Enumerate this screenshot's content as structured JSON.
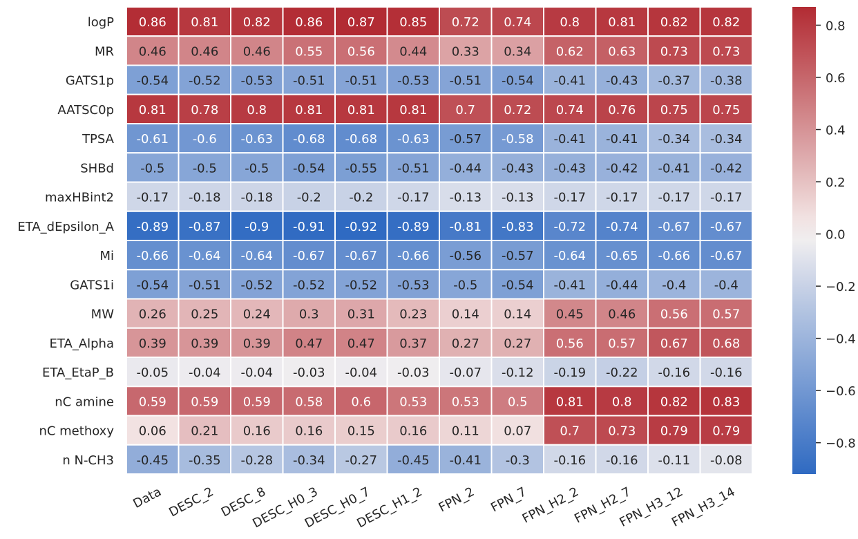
{
  "chart_data": {
    "type": "heatmap",
    "title": "",
    "xlabel": "",
    "ylabel": "",
    "rows": [
      "logP",
      "MR",
      "GATS1p",
      "AATSC0p",
      "TPSA",
      "SHBd",
      "maxHBint2",
      "ETA_dEpsilon_A",
      "Mi",
      "GATS1i",
      "MW",
      "ETA_Alpha",
      "ETA_EtaP_B",
      "nC amine",
      "nC methoxy",
      "n N-CH3"
    ],
    "columns": [
      "Data",
      "DESC_2",
      "DESC_8",
      "DESC_H0_3",
      "DESC_H0_7",
      "DESC_H1_2",
      "FPN_2",
      "FPN_7",
      "FPN_H2_2",
      "FPN_H2_7",
      "FPN_H3_12",
      "FPN_H3_14"
    ],
    "values": [
      [
        0.86,
        0.81,
        0.82,
        0.86,
        0.87,
        0.85,
        0.72,
        0.74,
        0.8,
        0.81,
        0.82,
        0.82
      ],
      [
        0.46,
        0.46,
        0.46,
        0.55,
        0.56,
        0.44,
        0.33,
        0.34,
        0.62,
        0.63,
        0.73,
        0.73
      ],
      [
        -0.54,
        -0.52,
        -0.53,
        -0.51,
        -0.51,
        -0.53,
        -0.51,
        -0.54,
        -0.41,
        -0.43,
        -0.37,
        -0.38
      ],
      [
        0.81,
        0.78,
        0.8,
        0.81,
        0.81,
        0.81,
        0.7,
        0.72,
        0.74,
        0.76,
        0.75,
        0.75
      ],
      [
        -0.61,
        -0.6,
        -0.63,
        -0.68,
        -0.68,
        -0.63,
        -0.57,
        -0.58,
        -0.41,
        -0.41,
        -0.34,
        -0.34
      ],
      [
        -0.5,
        -0.5,
        -0.5,
        -0.54,
        -0.55,
        -0.51,
        -0.44,
        -0.43,
        -0.43,
        -0.42,
        -0.41,
        -0.42
      ],
      [
        -0.17,
        -0.18,
        -0.18,
        -0.2,
        -0.2,
        -0.17,
        -0.13,
        -0.13,
        -0.17,
        -0.17,
        -0.17,
        -0.17
      ],
      [
        -0.89,
        -0.87,
        -0.9,
        -0.91,
        -0.92,
        -0.89,
        -0.81,
        -0.83,
        -0.72,
        -0.74,
        -0.67,
        -0.67
      ],
      [
        -0.66,
        -0.64,
        -0.64,
        -0.67,
        -0.67,
        -0.66,
        -0.56,
        -0.57,
        -0.64,
        -0.65,
        -0.66,
        -0.67
      ],
      [
        -0.54,
        -0.51,
        -0.52,
        -0.52,
        -0.52,
        -0.53,
        -0.5,
        -0.54,
        -0.41,
        -0.44,
        -0.4,
        -0.4
      ],
      [
        0.26,
        0.25,
        0.24,
        0.3,
        0.31,
        0.23,
        0.14,
        0.14,
        0.45,
        0.46,
        0.56,
        0.57
      ],
      [
        0.39,
        0.39,
        0.39,
        0.47,
        0.47,
        0.37,
        0.27,
        0.27,
        0.56,
        0.57,
        0.67,
        0.68
      ],
      [
        -0.05,
        -0.04,
        -0.04,
        -0.03,
        -0.04,
        -0.03,
        -0.07,
        -0.12,
        -0.19,
        -0.22,
        -0.16,
        -0.16
      ],
      [
        0.59,
        0.59,
        0.59,
        0.58,
        0.6,
        0.53,
        0.53,
        0.5,
        0.81,
        0.8,
        0.82,
        0.83
      ],
      [
        0.06,
        0.21,
        0.16,
        0.16,
        0.15,
        0.16,
        0.11,
        0.07,
        0.7,
        0.73,
        0.79,
        0.79
      ],
      [
        -0.45,
        -0.35,
        -0.28,
        -0.34,
        -0.27,
        -0.45,
        -0.41,
        -0.3,
        -0.16,
        -0.16,
        -0.11,
        -0.08
      ]
    ],
    "colorbar": {
      "range": [
        -0.92,
        0.87
      ],
      "ticks": [
        0.8,
        0.6,
        0.4,
        0.2,
        0.0,
        -0.2,
        -0.4,
        -0.6,
        -0.8
      ],
      "tick_labels": [
        "0.8",
        "0.6",
        "0.4",
        "0.2",
        "0.0",
        "−0.2",
        "−0.4",
        "−0.6",
        "−0.8"
      ],
      "colormap": "diverging blue-white-red",
      "colors": {
        "low": "#2f6ac2",
        "mid": "#f7f2f1",
        "high": "#b22b33"
      }
    },
    "grid": true,
    "legend": "colorbar-right"
  }
}
